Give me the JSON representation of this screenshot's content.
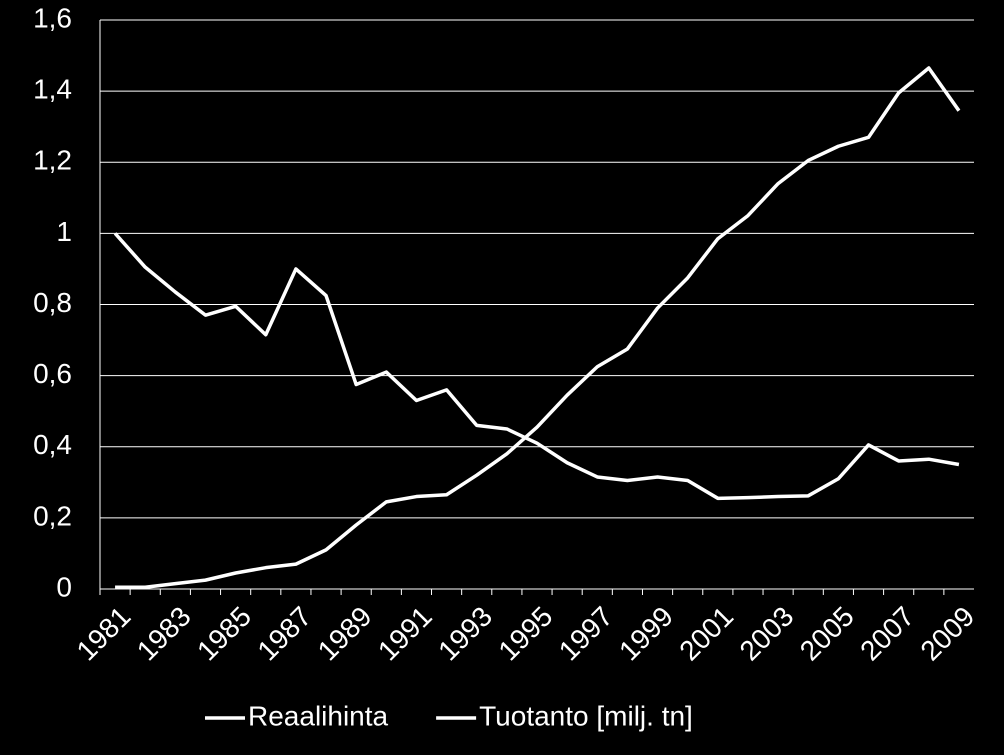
{
  "chart_data": {
    "type": "line",
    "categories": [
      "1981",
      null,
      "1983",
      null,
      "1985",
      null,
      "1987",
      null,
      "1989",
      null,
      "1991",
      null,
      "1993",
      null,
      "1995",
      null,
      "1997",
      null,
      "1999",
      null,
      "2001",
      null,
      "2003",
      null,
      "2005",
      null,
      "2007",
      null,
      "2009"
    ],
    "series": [
      {
        "name": "Reaalihinta",
        "color": "#ffffff",
        "values": [
          1.0,
          0.905,
          0.835,
          0.77,
          0.795,
          0.715,
          0.9,
          0.825,
          0.575,
          0.61,
          0.53,
          0.56,
          0.46,
          0.45,
          0.41,
          0.355,
          0.315,
          0.305,
          0.315,
          0.305,
          0.255,
          0.257,
          0.26,
          0.262,
          0.31,
          0.405,
          0.36,
          0.365,
          0.35
        ]
      },
      {
        "name": "Tuotanto [milj. tn]",
        "color": "#ffffff",
        "values": [
          0.005,
          0.005,
          0.015,
          0.025,
          0.045,
          0.06,
          0.07,
          0.11,
          0.18,
          0.245,
          0.26,
          0.265,
          0.32,
          0.38,
          0.455,
          0.545,
          0.625,
          0.675,
          0.79,
          0.875,
          0.985,
          1.05,
          1.14,
          1.205,
          1.245,
          1.27,
          1.395,
          1.465,
          1.345
        ]
      }
    ],
    "ylim": [
      0,
      1.6
    ],
    "yticks": [
      0,
      {
        "value": 0.2,
        "label": "0,2"
      },
      {
        "value": 0.4,
        "label": "0,4"
      },
      {
        "value": 0.6,
        "label": "0,6"
      },
      {
        "value": 0.8,
        "label": "0,8"
      },
      1,
      {
        "value": 1.2,
        "label": "1,2"
      },
      {
        "value": 1.4,
        "label": "1,4"
      },
      {
        "value": 1.6,
        "label": "1,6"
      }
    ],
    "grid": true,
    "legend": "bottom"
  }
}
